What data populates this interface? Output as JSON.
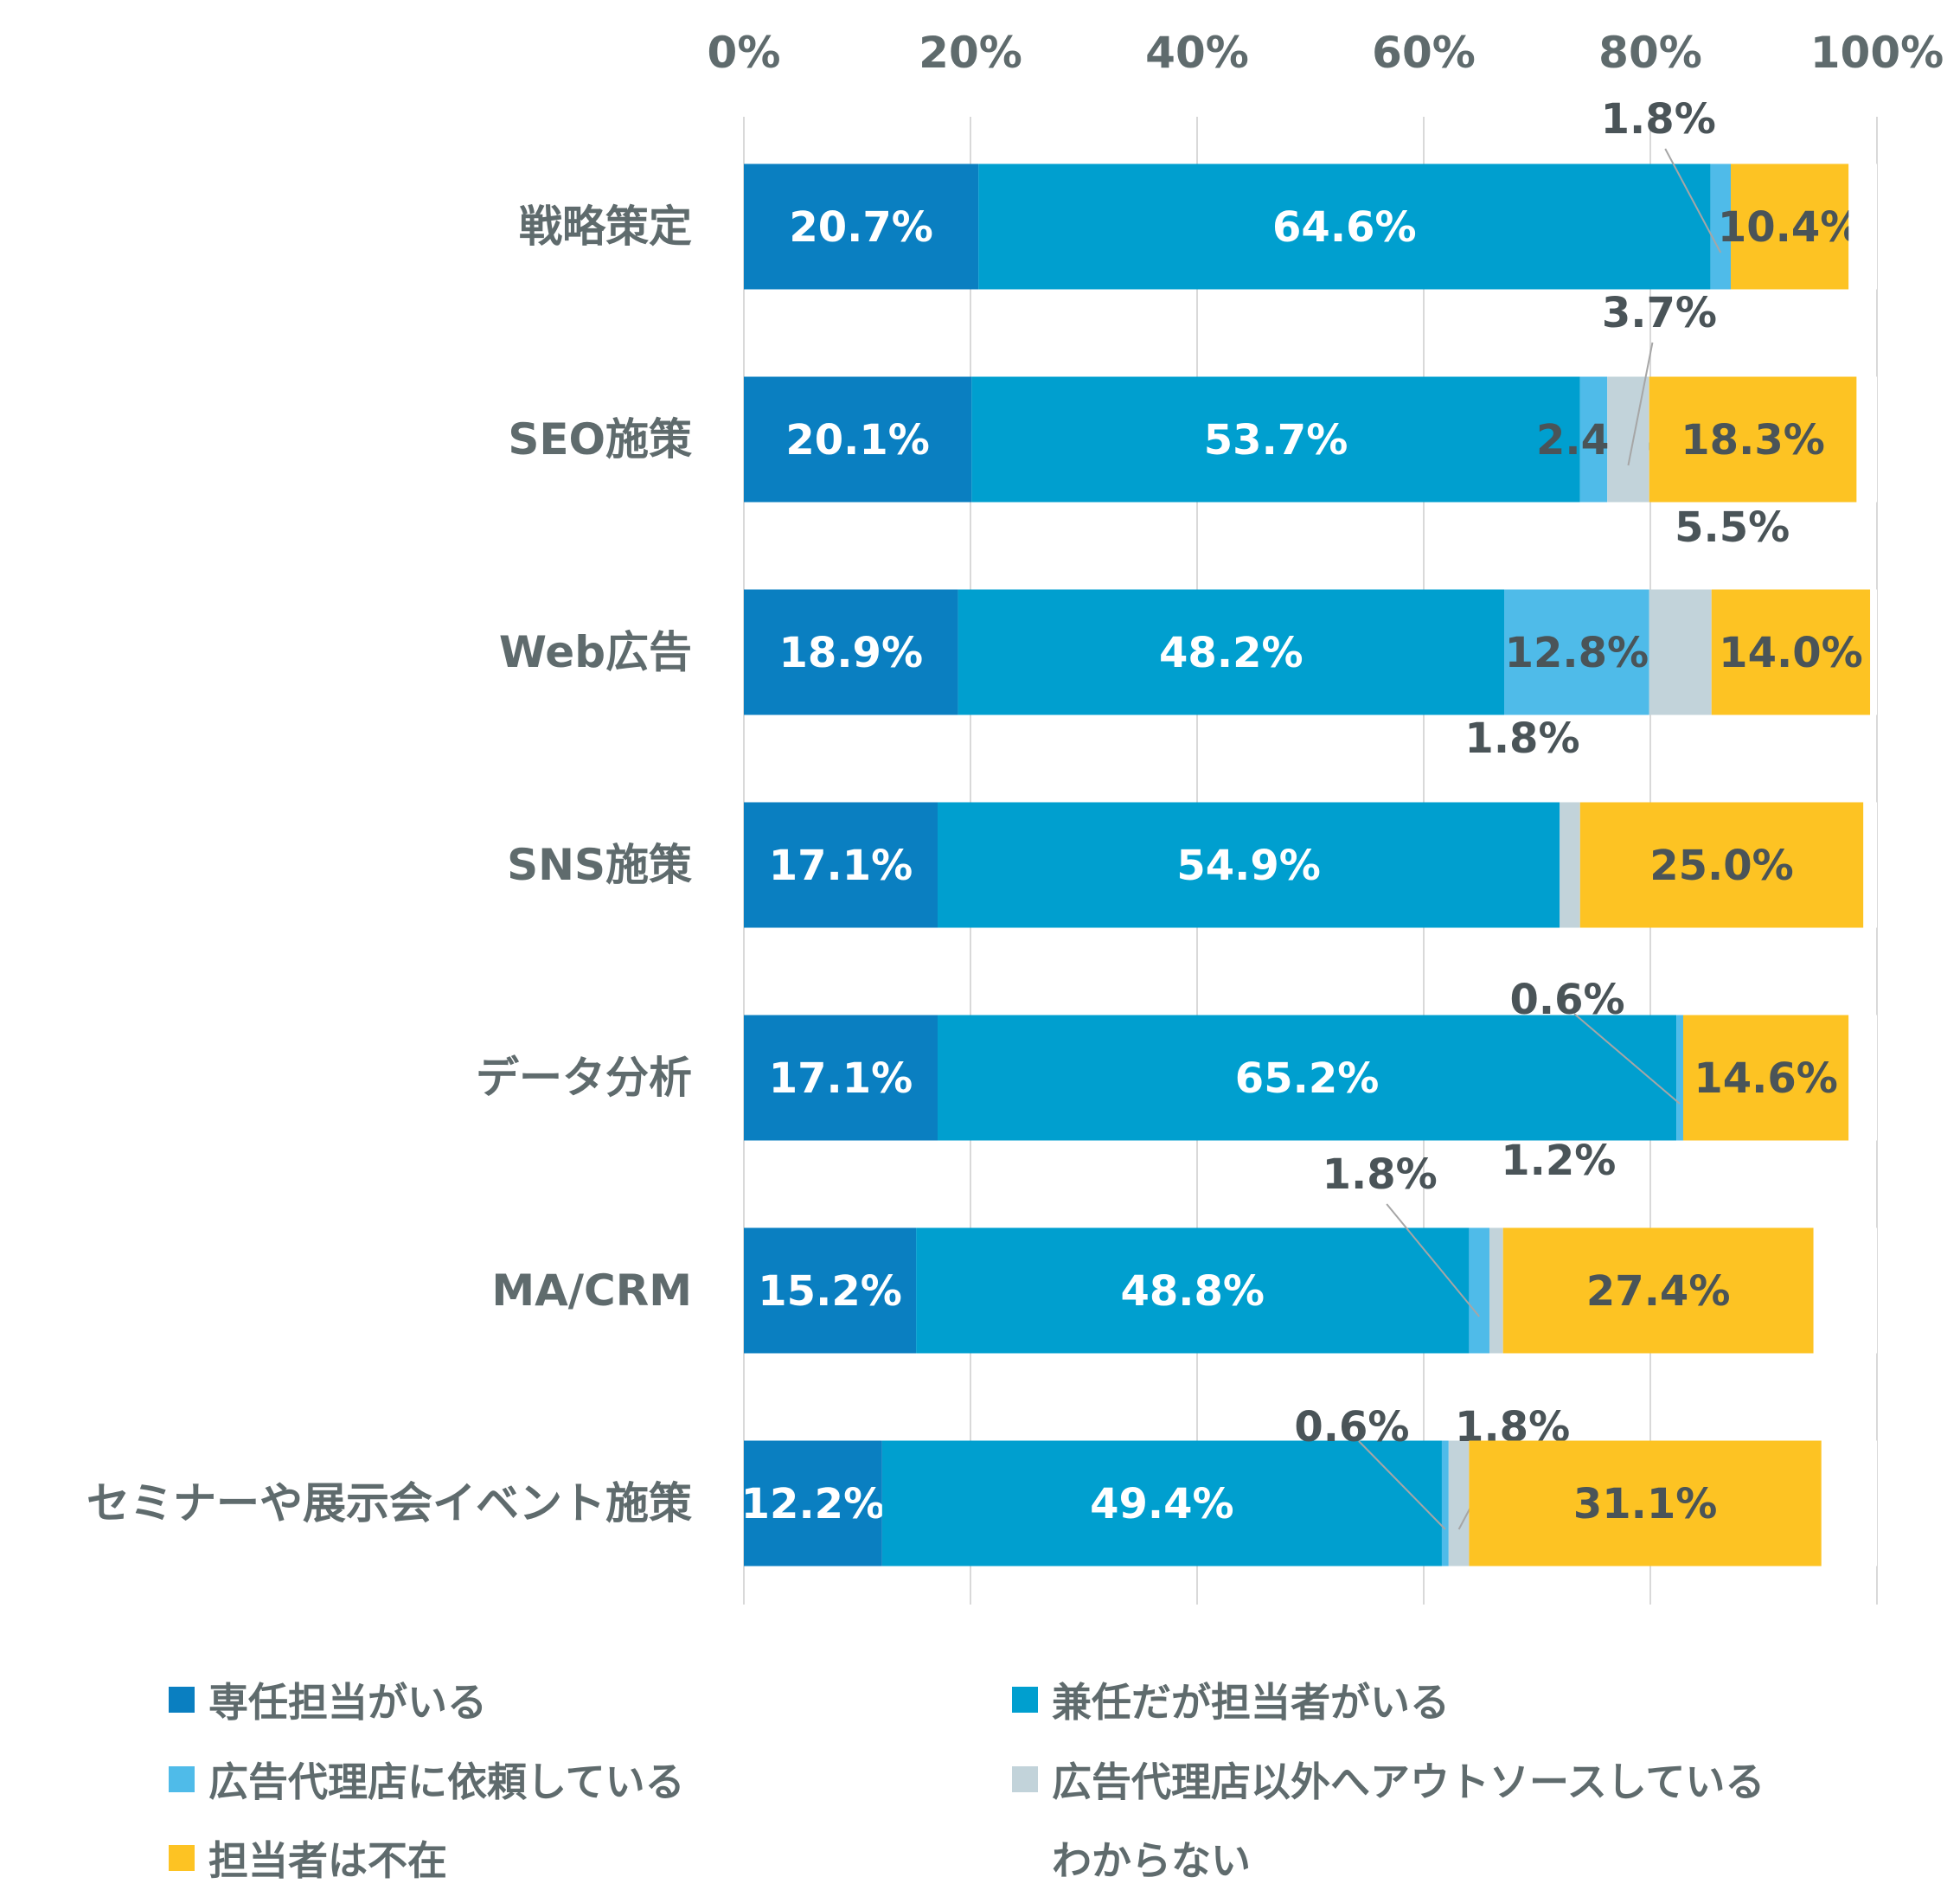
{
  "chart_data": {
    "type": "bar",
    "orientation": "horizontal",
    "stacked": true,
    "categories": [
      "戦略策定",
      "SEO施策",
      "Web広告",
      "SNS施策",
      "データ分析",
      "MA/CRM",
      "セミナーや展示会イベント施策"
    ],
    "xlim": [
      0,
      100
    ],
    "x_ticks": [
      "0%",
      "20%",
      "40%",
      "60%",
      "80%",
      "100%"
    ],
    "grid": true,
    "legend_position": "bottom",
    "series": [
      {
        "name": "専任担当がいる",
        "color": "#0a7fc1",
        "values": [
          20.7,
          20.1,
          18.9,
          17.1,
          17.1,
          15.2,
          12.2
        ],
        "labels": [
          "20.7%",
          "20.1%",
          "18.9%",
          "17.1%",
          "17.1%",
          "15.2%",
          "12.2%"
        ]
      },
      {
        "name": "兼任だが担当者がいる",
        "color": "#009fcf",
        "values": [
          64.6,
          53.7,
          48.2,
          54.9,
          65.2,
          48.8,
          49.4
        ],
        "labels": [
          "64.6%",
          "53.7%",
          "48.2%",
          "54.9%",
          "65.2%",
          "48.8%",
          "49.4%"
        ]
      },
      {
        "name": "広告代理店に依頼している",
        "color": "#4fbbe9",
        "values": [
          1.8,
          2.4,
          12.8,
          0,
          0.6,
          1.8,
          0.6
        ],
        "labels": [
          "1.8%",
          "2.4%",
          "12.8%",
          "",
          "0.6%",
          "1.8%",
          "0.6%"
        ]
      },
      {
        "name": "広告代理店以外へアウトソースしている",
        "color": "#c2d3da",
        "values": [
          0,
          3.7,
          5.5,
          1.8,
          0,
          1.2,
          1.8
        ],
        "labels": [
          "",
          "3.7%",
          "5.5%",
          "1.8%",
          "",
          "1.2%",
          "1.8%"
        ]
      },
      {
        "name": "担当者は不在",
        "color": "#fdc323",
        "values": [
          10.4,
          18.3,
          14.0,
          25.0,
          14.6,
          27.4,
          31.1
        ],
        "labels": [
          "10.4%",
          "18.3%",
          "14.0%",
          "25.0%",
          "14.6%",
          "27.4%",
          "31.1%"
        ]
      },
      {
        "name": "わからない",
        "color": "#ffffff",
        "values": [
          2.5,
          1.8,
          0.6,
          1.2,
          2.5,
          5.6,
          4.9
        ],
        "labels": [
          "",
          "",
          "",
          "",
          "",
          "",
          ""
        ]
      }
    ]
  }
}
